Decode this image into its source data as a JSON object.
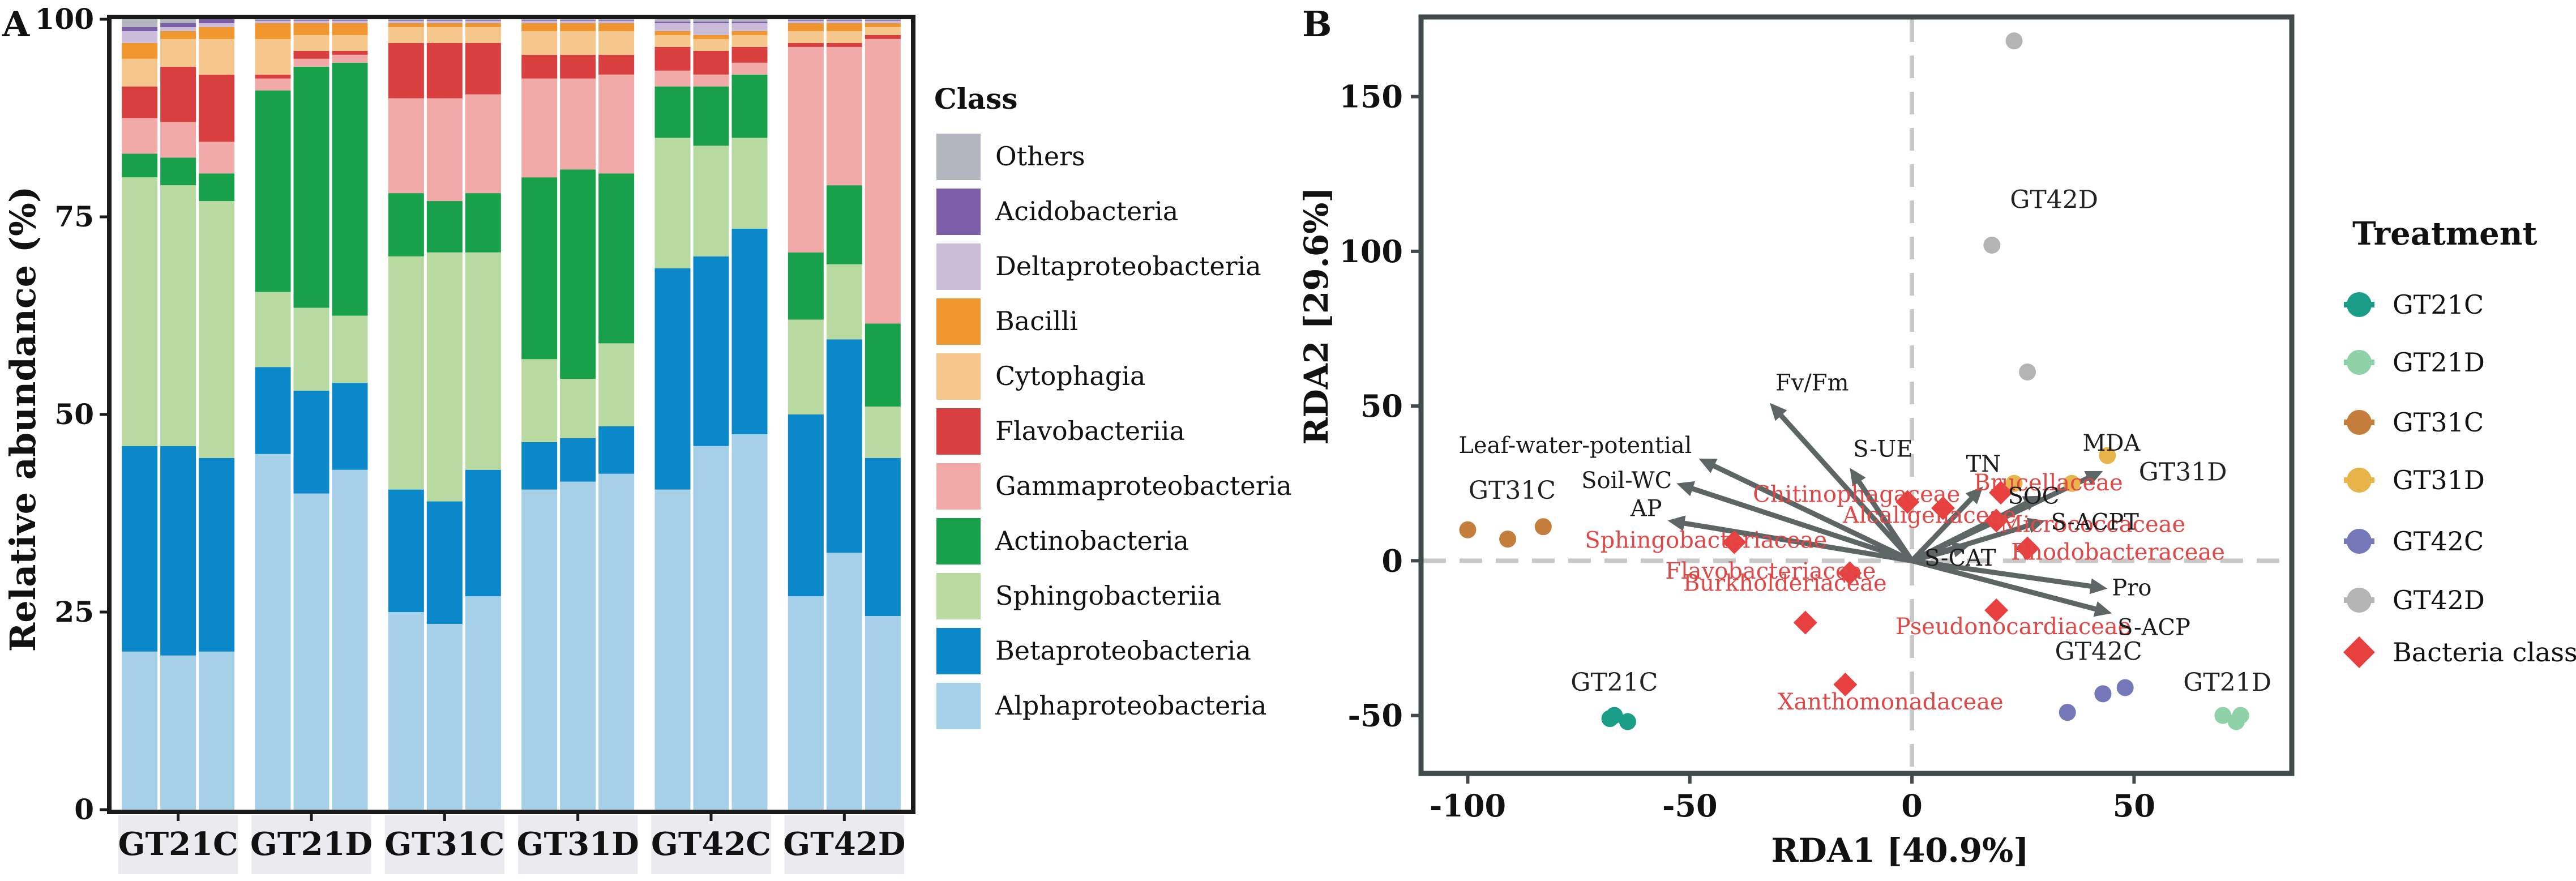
{
  "chart_data": [
    {
      "type": "bar",
      "stacked": true,
      "panel_label": "A",
      "ylabel": "Relative abundance (%)",
      "ylim": [
        0,
        100
      ],
      "yticks": [
        0,
        25,
        50,
        75,
        100
      ],
      "grid": false,
      "legend_title": "Class",
      "legend_position": "right",
      "groups": [
        "GT21C",
        "GT21D",
        "GT31C",
        "GT31D",
        "GT42C",
        "GT42D"
      ],
      "bars_per_group": 3,
      "classes": [
        "Others",
        "Acidobacteria",
        "Deltaproteobacteria",
        "Bacilli",
        "Cytophagia",
        "Flavobacteriia",
        "Gammaproteobacteria",
        "Actinobacteria",
        "Sphingobacteriia",
        "Betaproteobacteria",
        "Alphaproteobacteria"
      ],
      "colors": {
        "Others": "#b3b6bf",
        "Acidobacteria": "#7b5ea7",
        "Deltaproteobacteria": "#cbbcd9",
        "Bacilli": "#f0962e",
        "Cytophagia": "#f6c78d",
        "Flavobacteriia": "#d93f3e",
        "Gammaproteobacteria": "#f2aaa8",
        "Actinobacteria": "#18a04b",
        "Sphingobacteriia": "#b8d9a0",
        "Betaproteobacteria": "#0a88c9",
        "Alphaproteobacteria": "#a6cfe8"
      },
      "series_order_bottom_to_top": [
        "Alphaproteobacteria",
        "Betaproteobacteria",
        "Sphingobacteriia",
        "Actinobacteria",
        "Gammaproteobacteria",
        "Flavobacteriia",
        "Cytophagia",
        "Bacilli",
        "Deltaproteobacteria",
        "Acidobacteria",
        "Others"
      ],
      "samples": [
        {
          "group": "GT21C",
          "values": {
            "Alphaproteobacteria": 20,
            "Betaproteobacteria": 26,
            "Sphingobacteriia": 34,
            "Actinobacteria": 3,
            "Gammaproteobacteria": 4.5,
            "Flavobacteriia": 4,
            "Cytophagia": 3.5,
            "Bacilli": 2,
            "Deltaproteobacteria": 1.5,
            "Acidobacteria": 0.5,
            "Others": 1
          }
        },
        {
          "group": "GT21C",
          "values": {
            "Alphaproteobacteria": 19.5,
            "Betaproteobacteria": 26.5,
            "Sphingobacteriia": 33,
            "Actinobacteria": 3.5,
            "Gammaproteobacteria": 4.5,
            "Flavobacteriia": 7,
            "Cytophagia": 3.5,
            "Bacilli": 1,
            "Deltaproteobacteria": 0.5,
            "Acidobacteria": 0.5,
            "Others": 0.5
          }
        },
        {
          "group": "GT21C",
          "values": {
            "Alphaproteobacteria": 20,
            "Betaproteobacteria": 24.5,
            "Sphingobacteriia": 32.5,
            "Actinobacteria": 3.5,
            "Gammaproteobacteria": 4,
            "Flavobacteriia": 8.5,
            "Cytophagia": 4.5,
            "Bacilli": 1.5,
            "Deltaproteobacteria": 0.5,
            "Acidobacteria": 0.5,
            "Others": 0.5
          }
        },
        {
          "group": "GT21D",
          "values": {
            "Alphaproteobacteria": 45,
            "Betaproteobacteria": 11,
            "Sphingobacteriia": 9.5,
            "Actinobacteria": 25.5,
            "Gammaproteobacteria": 1.5,
            "Flavobacteriia": 0.5,
            "Cytophagia": 4.5,
            "Bacilli": 2,
            "Deltaproteobacteria": 0.3,
            "Acidobacteria": 0.1,
            "Others": 0.1
          }
        },
        {
          "group": "GT21D",
          "values": {
            "Alphaproteobacteria": 40,
            "Betaproteobacteria": 13,
            "Sphingobacteriia": 10.5,
            "Actinobacteria": 30.5,
            "Gammaproteobacteria": 1,
            "Flavobacteriia": 1,
            "Cytophagia": 2,
            "Bacilli": 1.5,
            "Deltaproteobacteria": 0.3,
            "Acidobacteria": 0.1,
            "Others": 0.1
          }
        },
        {
          "group": "GT21D",
          "values": {
            "Alphaproteobacteria": 43,
            "Betaproteobacteria": 11,
            "Sphingobacteriia": 8.5,
            "Actinobacteria": 32,
            "Gammaproteobacteria": 1,
            "Flavobacteriia": 0.5,
            "Cytophagia": 2,
            "Bacilli": 1.5,
            "Deltaproteobacteria": 0.3,
            "Acidobacteria": 0.1,
            "Others": 0.1
          }
        },
        {
          "group": "GT31C",
          "values": {
            "Alphaproteobacteria": 25,
            "Betaproteobacteria": 15.5,
            "Sphingobacteriia": 29.5,
            "Actinobacteria": 8,
            "Gammaproteobacteria": 12,
            "Flavobacteriia": 7,
            "Cytophagia": 2,
            "Bacilli": 0.5,
            "Deltaproteobacteria": 0.3,
            "Acidobacteria": 0.1,
            "Others": 0.1
          }
        },
        {
          "group": "GT31C",
          "values": {
            "Alphaproteobacteria": 23.5,
            "Betaproteobacteria": 15.5,
            "Sphingobacteriia": 31.5,
            "Actinobacteria": 6.5,
            "Gammaproteobacteria": 13,
            "Flavobacteriia": 7,
            "Cytophagia": 2,
            "Bacilli": 0.5,
            "Deltaproteobacteria": 0.3,
            "Acidobacteria": 0.1,
            "Others": 0.1
          }
        },
        {
          "group": "GT31C",
          "values": {
            "Alphaproteobacteria": 27,
            "Betaproteobacteria": 16,
            "Sphingobacteriia": 27.5,
            "Actinobacteria": 7.5,
            "Gammaproteobacteria": 12.5,
            "Flavobacteriia": 6.5,
            "Cytophagia": 2,
            "Bacilli": 0.5,
            "Deltaproteobacteria": 0.3,
            "Acidobacteria": 0.1,
            "Others": 0.1
          }
        },
        {
          "group": "GT31D",
          "values": {
            "Alphaproteobacteria": 40.5,
            "Betaproteobacteria": 6,
            "Sphingobacteriia": 10.5,
            "Actinobacteria": 23,
            "Gammaproteobacteria": 12.5,
            "Flavobacteriia": 3,
            "Cytophagia": 3,
            "Bacilli": 1,
            "Deltaproteobacteria": 0.3,
            "Acidobacteria": 0.1,
            "Others": 0.1
          }
        },
        {
          "group": "GT31D",
          "values": {
            "Alphaproteobacteria": 41.5,
            "Betaproteobacteria": 5.5,
            "Sphingobacteriia": 7.5,
            "Actinobacteria": 26.5,
            "Gammaproteobacteria": 11.5,
            "Flavobacteriia": 3,
            "Cytophagia": 3,
            "Bacilli": 1,
            "Deltaproteobacteria": 0.3,
            "Acidobacteria": 0.1,
            "Others": 0.1
          }
        },
        {
          "group": "GT31D",
          "values": {
            "Alphaproteobacteria": 42.5,
            "Betaproteobacteria": 6,
            "Sphingobacteriia": 10.5,
            "Actinobacteria": 21.5,
            "Gammaproteobacteria": 12.5,
            "Flavobacteriia": 2.5,
            "Cytophagia": 3,
            "Bacilli": 1,
            "Deltaproteobacteria": 0.3,
            "Acidobacteria": 0.1,
            "Others": 0.1
          }
        },
        {
          "group": "GT42C",
          "values": {
            "Alphaproteobacteria": 40.5,
            "Betaproteobacteria": 28,
            "Sphingobacteriia": 16.5,
            "Actinobacteria": 6.5,
            "Gammaproteobacteria": 2,
            "Flavobacteriia": 3,
            "Cytophagia": 1.5,
            "Bacilli": 0.5,
            "Deltaproteobacteria": 1,
            "Acidobacteria": 0.2,
            "Others": 0.3
          }
        },
        {
          "group": "GT42C",
          "values": {
            "Alphaproteobacteria": 46,
            "Betaproteobacteria": 24,
            "Sphingobacteriia": 14,
            "Actinobacteria": 7.5,
            "Gammaproteobacteria": 1.5,
            "Flavobacteriia": 3,
            "Cytophagia": 1.5,
            "Bacilli": 0.5,
            "Deltaproteobacteria": 1.5,
            "Acidobacteria": 0.2,
            "Others": 0.3
          }
        },
        {
          "group": "GT42C",
          "values": {
            "Alphaproteobacteria": 47.5,
            "Betaproteobacteria": 26,
            "Sphingobacteriia": 11.5,
            "Actinobacteria": 8,
            "Gammaproteobacteria": 1.5,
            "Flavobacteriia": 2,
            "Cytophagia": 1.5,
            "Bacilli": 0.5,
            "Deltaproteobacteria": 1,
            "Acidobacteria": 0.2,
            "Others": 0.3
          }
        },
        {
          "group": "GT42D",
          "values": {
            "Alphaproteobacteria": 27,
            "Betaproteobacteria": 23,
            "Sphingobacteriia": 12,
            "Actinobacteria": 8.5,
            "Gammaproteobacteria": 26,
            "Flavobacteriia": 0.5,
            "Cytophagia": 1.5,
            "Bacilli": 1,
            "Deltaproteobacteria": 0.3,
            "Acidobacteria": 0.1,
            "Others": 0.1
          }
        },
        {
          "group": "GT42D",
          "values": {
            "Alphaproteobacteria": 32.5,
            "Betaproteobacteria": 27,
            "Sphingobacteriia": 9.5,
            "Actinobacteria": 10,
            "Gammaproteobacteria": 17.5,
            "Flavobacteriia": 0.5,
            "Cytophagia": 1.5,
            "Bacilli": 1,
            "Deltaproteobacteria": 0.3,
            "Acidobacteria": 0.1,
            "Others": 0.1
          }
        },
        {
          "group": "GT42D",
          "values": {
            "Alphaproteobacteria": 24.5,
            "Betaproteobacteria": 20,
            "Sphingobacteriia": 6.5,
            "Actinobacteria": 10.5,
            "Gammaproteobacteria": 36,
            "Flavobacteriia": 0.5,
            "Cytophagia": 1,
            "Bacilli": 0.5,
            "Deltaproteobacteria": 0.3,
            "Acidobacteria": 0.1,
            "Others": 0.1
          }
        }
      ]
    },
    {
      "type": "scatter",
      "subtype": "RDA biplot",
      "panel_label": "B",
      "xlabel": "RDA1 [40.9%]",
      "ylabel": "RDA2 [29.6%]",
      "xlim": [
        -110,
        85
      ],
      "ylim": [
        -68,
        175
      ],
      "xticks": [
        -100,
        -50,
        0,
        50
      ],
      "yticks": [
        -50,
        0,
        50,
        100,
        150
      ],
      "reference_lines": {
        "x": 0,
        "y": 0,
        "style": "dashed",
        "color": "#c8c8c8"
      },
      "legend_title": "Treatment",
      "legend_position": "right",
      "treatments": [
        {
          "name": "GT21C",
          "color": "#1a9e8a",
          "points": [
            [
              -67,
              -50
            ],
            [
              -64,
              -52
            ],
            [
              -68,
              -51
            ]
          ],
          "label": "GT21C",
          "label_pos": [
            -67,
            -42
          ]
        },
        {
          "name": "GT21D",
          "color": "#8fd2a8",
          "points": [
            [
              70,
              -50
            ],
            [
              73,
              -52
            ],
            [
              74,
              -50
            ]
          ],
          "label": "GT21D",
          "label_pos": [
            71,
            -42
          ]
        },
        {
          "name": "GT31C",
          "color": "#c47d3a",
          "points": [
            [
              -100,
              10
            ],
            [
              -91,
              7
            ],
            [
              -83,
              11
            ]
          ],
          "label": "GT31C",
          "label_pos": [
            -90,
            20
          ]
        },
        {
          "name": "GT31D",
          "color": "#e6b449",
          "points": [
            [
              44,
              34
            ],
            [
              36,
              25
            ],
            [
              23,
              25
            ]
          ],
          "label": "GT31D",
          "label_pos": [
            61,
            26
          ]
        },
        {
          "name": "GT42C",
          "color": "#7478b8",
          "points": [
            [
              43,
              -43
            ],
            [
              48,
              -41
            ],
            [
              35,
              -49
            ]
          ],
          "label": "GT42C",
          "label_pos": [
            42,
            -32
          ]
        },
        {
          "name": "GT42D",
          "color": "#b4b4b4",
          "points": [
            [
              23,
              168
            ],
            [
              18,
              102
            ],
            [
              26,
              61
            ]
          ],
          "label": "GT42D",
          "label_pos": [
            32,
            114
          ]
        }
      ],
      "bacteria_class": {
        "name": "Bacteria class",
        "color": "#e8403f",
        "points": [
          {
            "label": "Chitinophagaceae",
            "x": -1,
            "y": 19
          },
          {
            "label": "Alcaligenaceae",
            "x": 7,
            "y": 17
          },
          {
            "label": "Brucellaceae",
            "x": 20,
            "y": 22
          },
          {
            "label": "Micrococcaceae",
            "x": 19,
            "y": 13
          },
          {
            "label": "Sphingobacteriaceae",
            "x": -40,
            "y": 6
          },
          {
            "label": "Flavobacteriaceae",
            "x": -14,
            "y": -4
          },
          {
            "label": "Rhodobacteraceae",
            "x": 26,
            "y": 4
          },
          {
            "label": "Burkholderiaceae",
            "x": -24,
            "y": -20
          },
          {
            "label": "Pseudonocardiaceae",
            "x": 19,
            "y": -16
          },
          {
            "label": "Xanthomonadaceae",
            "x": -15,
            "y": -40
          }
        ]
      },
      "environmental_arrows": [
        {
          "label": "Fv/Fm",
          "x": -32,
          "y": 51
        },
        {
          "label": "Leaf-water-potential",
          "x": -48,
          "y": 33
        },
        {
          "label": "S-UE",
          "x": -14,
          "y": 30
        },
        {
          "label": "Soil-WC",
          "x": -53,
          "y": 25
        },
        {
          "label": "AP",
          "x": -55,
          "y": 13
        },
        {
          "label": "TN",
          "x": 16,
          "y": 24
        },
        {
          "label": "SOC",
          "x": 29,
          "y": 21
        },
        {
          "label": "MDA",
          "x": 43,
          "y": 29
        },
        {
          "label": "S-ACPT",
          "x": 30,
          "y": 13
        },
        {
          "label": "S-CAT",
          "x": 13,
          "y": 5
        },
        {
          "label": "Pro",
          "x": 44,
          "y": -9
        },
        {
          "label": "S-ACP",
          "x": 45,
          "y": -17
        }
      ]
    }
  ]
}
